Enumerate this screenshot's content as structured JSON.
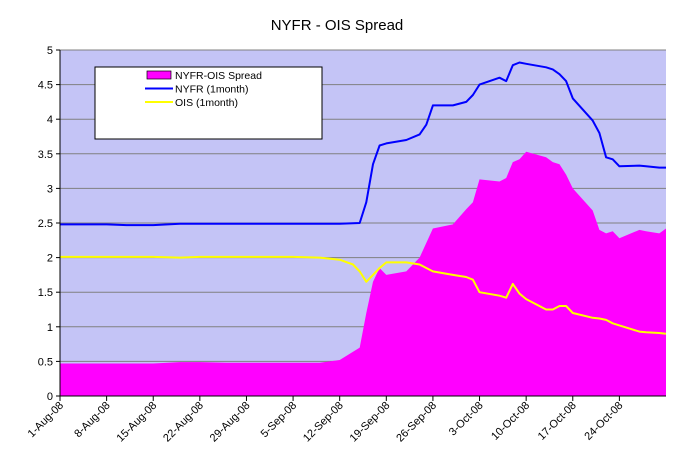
{
  "chart_data": {
    "type": "area",
    "title": "NYFR - OIS Spread",
    "xlabel": "",
    "ylabel": "",
    "ylim": [
      0,
      5
    ],
    "yticks": [
      "0",
      "0.5",
      "1",
      "1.5",
      "2",
      "2.5",
      "3",
      "3.5",
      "4",
      "4.5",
      "5"
    ],
    "xlim": [
      "2008-08-01",
      "2008-10-31"
    ],
    "xticks": [
      {
        "date": "2008-08-01",
        "label": "1-Aug-08"
      },
      {
        "date": "2008-08-08",
        "label": "8-Aug-08"
      },
      {
        "date": "2008-08-15",
        "label": "15-Aug-08"
      },
      {
        "date": "2008-08-22",
        "label": "22-Aug-08"
      },
      {
        "date": "2008-08-29",
        "label": "29-Aug-08"
      },
      {
        "date": "2008-09-05",
        "label": "5-Sep-08"
      },
      {
        "date": "2008-09-12",
        "label": "12-Sep-08"
      },
      {
        "date": "2008-09-19",
        "label": "19-Sep-08"
      },
      {
        "date": "2008-09-26",
        "label": "26-Sep-08"
      },
      {
        "date": "2008-10-03",
        "label": "3-Oct-08"
      },
      {
        "date": "2008-10-10",
        "label": "10-Oct-08"
      },
      {
        "date": "2008-10-17",
        "label": "17-Oct-08"
      },
      {
        "date": "2008-10-24",
        "label": "24-Oct-08"
      }
    ],
    "grid": "horizontal",
    "background_color": "#c4c4f6",
    "legend": "top-left",
    "series": [
      {
        "name": "NYFR-OIS Spread",
        "kind": "area",
        "color": "#ff00ff",
        "points": [
          [
            "2008-08-01",
            0.47
          ],
          [
            "2008-08-08",
            0.47
          ],
          [
            "2008-08-15",
            0.47
          ],
          [
            "2008-08-19",
            0.49
          ],
          [
            "2008-08-22",
            0.49
          ],
          [
            "2008-08-26",
            0.48
          ],
          [
            "2008-08-29",
            0.48
          ],
          [
            "2008-09-05",
            0.48
          ],
          [
            "2008-09-09",
            0.48
          ],
          [
            "2008-09-12",
            0.52
          ],
          [
            "2008-09-15",
            0.7
          ],
          [
            "2008-09-16",
            1.2
          ],
          [
            "2008-09-17",
            1.65
          ],
          [
            "2008-09-18",
            1.85
          ],
          [
            "2008-09-19",
            1.75
          ],
          [
            "2008-09-22",
            1.8
          ],
          [
            "2008-09-24",
            2.0
          ],
          [
            "2008-09-26",
            2.42
          ],
          [
            "2008-09-29",
            2.48
          ],
          [
            "2008-10-01",
            2.7
          ],
          [
            "2008-10-02",
            2.8
          ],
          [
            "2008-10-03",
            3.13
          ],
          [
            "2008-10-06",
            3.1
          ],
          [
            "2008-10-07",
            3.15
          ],
          [
            "2008-10-08",
            3.38
          ],
          [
            "2008-10-09",
            3.42
          ],
          [
            "2008-10-10",
            3.53
          ],
          [
            "2008-10-13",
            3.45
          ],
          [
            "2008-10-14",
            3.38
          ],
          [
            "2008-10-15",
            3.35
          ],
          [
            "2008-10-16",
            3.2
          ],
          [
            "2008-10-17",
            3.0
          ],
          [
            "2008-10-20",
            2.68
          ],
          [
            "2008-10-21",
            2.4
          ],
          [
            "2008-10-22",
            2.35
          ],
          [
            "2008-10-23",
            2.38
          ],
          [
            "2008-10-24",
            2.28
          ],
          [
            "2008-10-27",
            2.4
          ],
          [
            "2008-10-28",
            2.38
          ],
          [
            "2008-10-30",
            2.35
          ],
          [
            "2008-10-31",
            2.42
          ]
        ]
      },
      {
        "name": "NYFR (1month)",
        "kind": "line",
        "color": "#0000ff",
        "points": [
          [
            "2008-08-01",
            2.48
          ],
          [
            "2008-08-08",
            2.48
          ],
          [
            "2008-08-11",
            2.47
          ],
          [
            "2008-08-15",
            2.47
          ],
          [
            "2008-08-19",
            2.49
          ],
          [
            "2008-08-22",
            2.49
          ],
          [
            "2008-08-29",
            2.49
          ],
          [
            "2008-09-05",
            2.49
          ],
          [
            "2008-09-12",
            2.49
          ],
          [
            "2008-09-15",
            2.5
          ],
          [
            "2008-09-16",
            2.8
          ],
          [
            "2008-09-17",
            3.35
          ],
          [
            "2008-09-18",
            3.62
          ],
          [
            "2008-09-19",
            3.65
          ],
          [
            "2008-09-22",
            3.7
          ],
          [
            "2008-09-24",
            3.78
          ],
          [
            "2008-09-25",
            3.92
          ],
          [
            "2008-09-26",
            4.2
          ],
          [
            "2008-09-29",
            4.2
          ],
          [
            "2008-10-01",
            4.25
          ],
          [
            "2008-10-02",
            4.35
          ],
          [
            "2008-10-03",
            4.5
          ],
          [
            "2008-10-06",
            4.6
          ],
          [
            "2008-10-07",
            4.55
          ],
          [
            "2008-10-08",
            4.78
          ],
          [
            "2008-10-09",
            4.82
          ],
          [
            "2008-10-10",
            4.8
          ],
          [
            "2008-10-13",
            4.75
          ],
          [
            "2008-10-14",
            4.72
          ],
          [
            "2008-10-15",
            4.65
          ],
          [
            "2008-10-16",
            4.55
          ],
          [
            "2008-10-17",
            4.3
          ],
          [
            "2008-10-20",
            3.98
          ],
          [
            "2008-10-21",
            3.8
          ],
          [
            "2008-10-22",
            3.45
          ],
          [
            "2008-10-23",
            3.42
          ],
          [
            "2008-10-24",
            3.32
          ],
          [
            "2008-10-27",
            3.33
          ],
          [
            "2008-10-28",
            3.32
          ],
          [
            "2008-10-30",
            3.3
          ],
          [
            "2008-10-31",
            3.3
          ]
        ]
      },
      {
        "name": "OIS (1month)",
        "kind": "line",
        "color": "#ffff00",
        "points": [
          [
            "2008-08-01",
            2.01
          ],
          [
            "2008-08-08",
            2.01
          ],
          [
            "2008-08-15",
            2.01
          ],
          [
            "2008-08-19",
            2.0
          ],
          [
            "2008-08-22",
            2.01
          ],
          [
            "2008-08-29",
            2.01
          ],
          [
            "2008-09-05",
            2.01
          ],
          [
            "2008-09-09",
            2.0
          ],
          [
            "2008-09-12",
            1.97
          ],
          [
            "2008-09-14",
            1.9
          ],
          [
            "2008-09-15",
            1.8
          ],
          [
            "2008-09-16",
            1.65
          ],
          [
            "2008-09-17",
            1.75
          ],
          [
            "2008-09-18",
            1.85
          ],
          [
            "2008-09-19",
            1.93
          ],
          [
            "2008-09-22",
            1.93
          ],
          [
            "2008-09-24",
            1.9
          ],
          [
            "2008-09-25",
            1.85
          ],
          [
            "2008-09-26",
            1.8
          ],
          [
            "2008-09-29",
            1.75
          ],
          [
            "2008-10-01",
            1.72
          ],
          [
            "2008-10-02",
            1.68
          ],
          [
            "2008-10-03",
            1.5
          ],
          [
            "2008-10-06",
            1.45
          ],
          [
            "2008-10-07",
            1.42
          ],
          [
            "2008-10-08",
            1.62
          ],
          [
            "2008-10-09",
            1.48
          ],
          [
            "2008-10-10",
            1.4
          ],
          [
            "2008-10-13",
            1.25
          ],
          [
            "2008-10-14",
            1.25
          ],
          [
            "2008-10-15",
            1.3
          ],
          [
            "2008-10-16",
            1.3
          ],
          [
            "2008-10-17",
            1.2
          ],
          [
            "2008-10-20",
            1.13
          ],
          [
            "2008-10-21",
            1.12
          ],
          [
            "2008-10-22",
            1.1
          ],
          [
            "2008-10-23",
            1.05
          ],
          [
            "2008-10-24",
            1.02
          ],
          [
            "2008-10-27",
            0.93
          ],
          [
            "2008-10-28",
            0.92
          ],
          [
            "2008-10-30",
            0.91
          ],
          [
            "2008-10-31",
            0.9
          ]
        ]
      }
    ]
  }
}
